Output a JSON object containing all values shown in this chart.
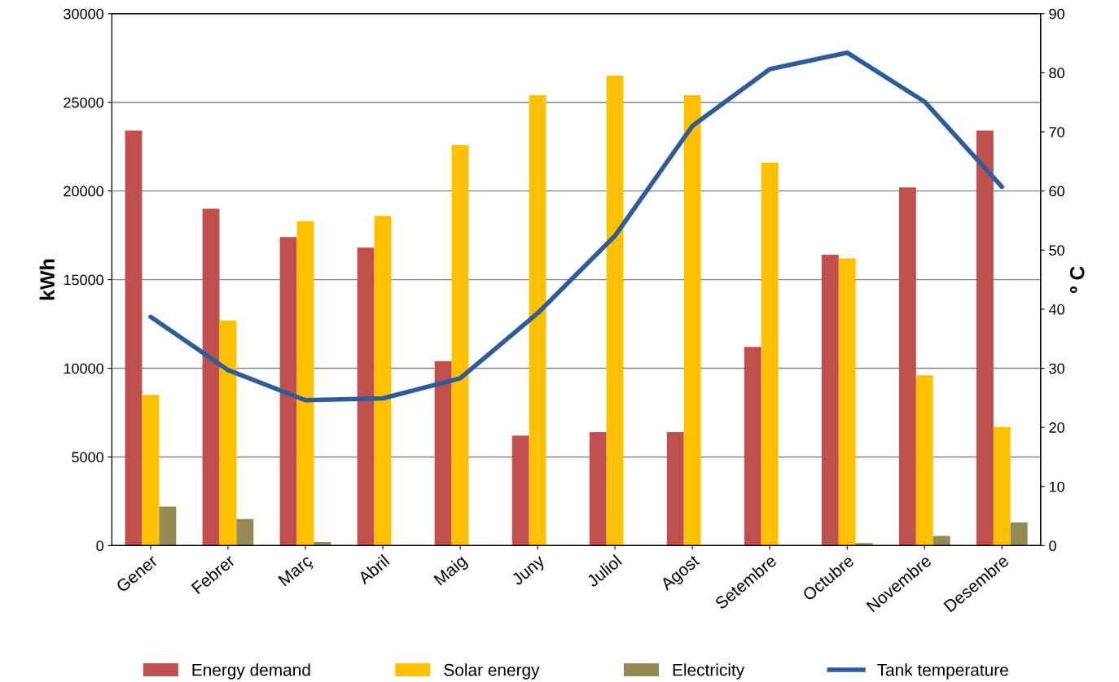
{
  "chart_data": {
    "type": "bar",
    "ylabel": "kWh",
    "y2label": "º C",
    "categories": [
      "Gener",
      "Febrer",
      "Març",
      "Abril",
      "Maig",
      "Juny",
      "Juliol",
      "Agost",
      "Setembre",
      "Octubre",
      "Novembre",
      "Desembre"
    ],
    "series": [
      {
        "name": "Energy demand",
        "color": "#c0504d",
        "values": [
          23400,
          19000,
          17400,
          16800,
          10400,
          6200,
          6400,
          6400,
          11200,
          16400,
          20200,
          23400
        ]
      },
      {
        "name": "Solar energy",
        "color": "#ffc000",
        "values": [
          8500,
          12700,
          18300,
          18600,
          22600,
          25400,
          26500,
          25400,
          21600,
          16200,
          9600,
          6700
        ]
      },
      {
        "name": "Electricity",
        "color": "#948a54",
        "values": [
          2200,
          1500,
          200,
          0,
          0,
          0,
          0,
          0,
          0,
          150,
          550,
          1300
        ]
      },
      {
        "name": "Tank temperature",
        "color": "#2e5c9a",
        "type": "line",
        "axis": "y2",
        "values": [
          38.7,
          29.7,
          24.6,
          24.9,
          28.3,
          39.3,
          52.4,
          71,
          80.6,
          83.4,
          75.1,
          60.7
        ]
      }
    ],
    "ylim": [
      0,
      30000
    ],
    "yticks": [
      0,
      5000,
      10000,
      15000,
      20000,
      25000,
      30000
    ],
    "y2lim": [
      0,
      90
    ],
    "y2ticks": [
      0,
      10,
      20,
      30,
      40,
      50,
      60,
      70,
      80,
      90
    ],
    "grid": "y",
    "legend": "bottom"
  }
}
